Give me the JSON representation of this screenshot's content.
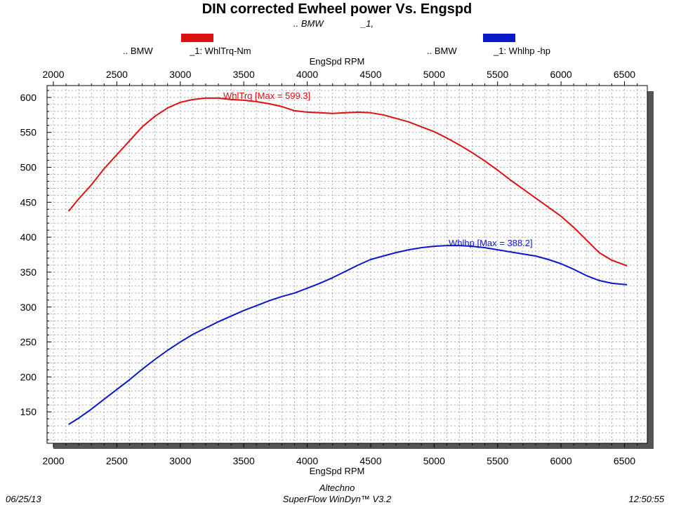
{
  "header": {
    "title": "DIN corrected Ewheel power Vs. Engspd",
    "subtitle_make": ".. BMW",
    "subtitle_run": "_1,"
  },
  "legend": [
    {
      "color": "#dd1111",
      "make": ".. BMW",
      "label": "_1: WhlTrq-Nm"
    },
    {
      "color": "#0a18c8",
      "make": ".. BMW",
      "label": "_1: Whlhp -hp"
    }
  ],
  "footer": {
    "date": "06/25/13",
    "company": "Altechno",
    "software": "SuperFlow WinDyn™ V3.2",
    "time": "12:50:55"
  },
  "chart_data": {
    "type": "line",
    "title": "DIN corrected Ewheel power Vs. Engspd",
    "xlabel": "EngSpd RPM",
    "ylabel": "",
    "xlim": [
      1950,
      6680
    ],
    "ylim": [
      105,
      617
    ],
    "x_ticks": [
      2000,
      2500,
      3000,
      3500,
      4000,
      4500,
      5000,
      5500,
      6000,
      6500
    ],
    "y_ticks": [
      150,
      200,
      250,
      300,
      350,
      400,
      450,
      500,
      550,
      600
    ],
    "grid": true,
    "series": [
      {
        "name": "_1: WhlTrq-Nm",
        "color": "#dd1111",
        "annotation": "WhlTrq [Max = 599.3]",
        "x": [
          2120,
          2200,
          2300,
          2400,
          2500,
          2600,
          2700,
          2800,
          2900,
          3000,
          3100,
          3200,
          3300,
          3400,
          3500,
          3600,
          3700,
          3800,
          3900,
          4000,
          4100,
          4200,
          4300,
          4400,
          4500,
          4600,
          4700,
          4800,
          4900,
          5000,
          5100,
          5200,
          5300,
          5400,
          5500,
          5600,
          5700,
          5800,
          5900,
          6000,
          6100,
          6200,
          6300,
          6400,
          6520
        ],
        "values": [
          437,
          455,
          475,
          498,
          518,
          538,
          558,
          573,
          585,
          593,
          597,
          599,
          599,
          597,
          596,
          594,
          591,
          587,
          581,
          579,
          578,
          577,
          578,
          579,
          578,
          575,
          570,
          565,
          558,
          551,
          542,
          532,
          521,
          509,
          496,
          482,
          469,
          456,
          443,
          430,
          414,
          396,
          378,
          367,
          359
        ]
      },
      {
        "name": "_1: Whlhp -hp",
        "color": "#0a18c8",
        "annotation": "Whlhp  [Max = 388.2]",
        "x": [
          2120,
          2200,
          2300,
          2400,
          2500,
          2600,
          2700,
          2800,
          2900,
          3000,
          3100,
          3200,
          3300,
          3400,
          3500,
          3600,
          3700,
          3800,
          3900,
          4000,
          4100,
          4200,
          4300,
          4400,
          4500,
          4600,
          4700,
          4800,
          4900,
          5000,
          5100,
          5200,
          5300,
          5400,
          5500,
          5600,
          5700,
          5800,
          5900,
          6000,
          6100,
          6200,
          6300,
          6400,
          6520
        ],
        "values": [
          132,
          141,
          154,
          168,
          182,
          196,
          211,
          225,
          238,
          250,
          261,
          270,
          279,
          287,
          295,
          302,
          309,
          315,
          320,
          327,
          334,
          342,
          351,
          360,
          368,
          373,
          378,
          382,
          385,
          387,
          388,
          388,
          387,
          385,
          382,
          379,
          376,
          373,
          368,
          362,
          354,
          345,
          338,
          334,
          332
        ]
      }
    ]
  }
}
